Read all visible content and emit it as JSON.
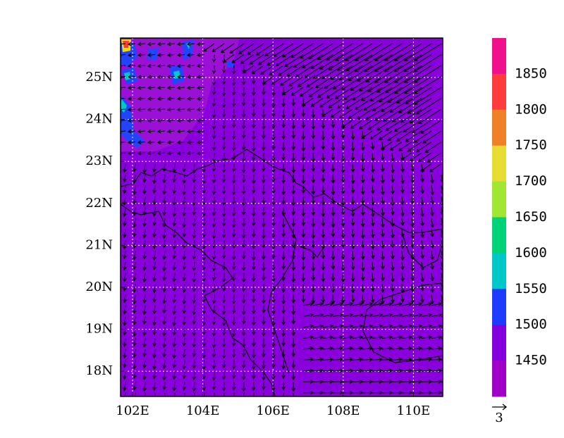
{
  "map": {
    "lat_labels": [
      "25N",
      "24N",
      "23N",
      "22N",
      "21N",
      "20N",
      "19N",
      "18N"
    ],
    "lon_labels": [
      "102E",
      "104E",
      "106E",
      "108E",
      "110E"
    ]
  },
  "colorbar": {
    "labels": [
      "1850",
      "1800",
      "1750",
      "1700",
      "1650",
      "1600",
      "1550",
      "1500",
      "1450"
    ]
  },
  "vector_key": {
    "label": "3"
  }
}
